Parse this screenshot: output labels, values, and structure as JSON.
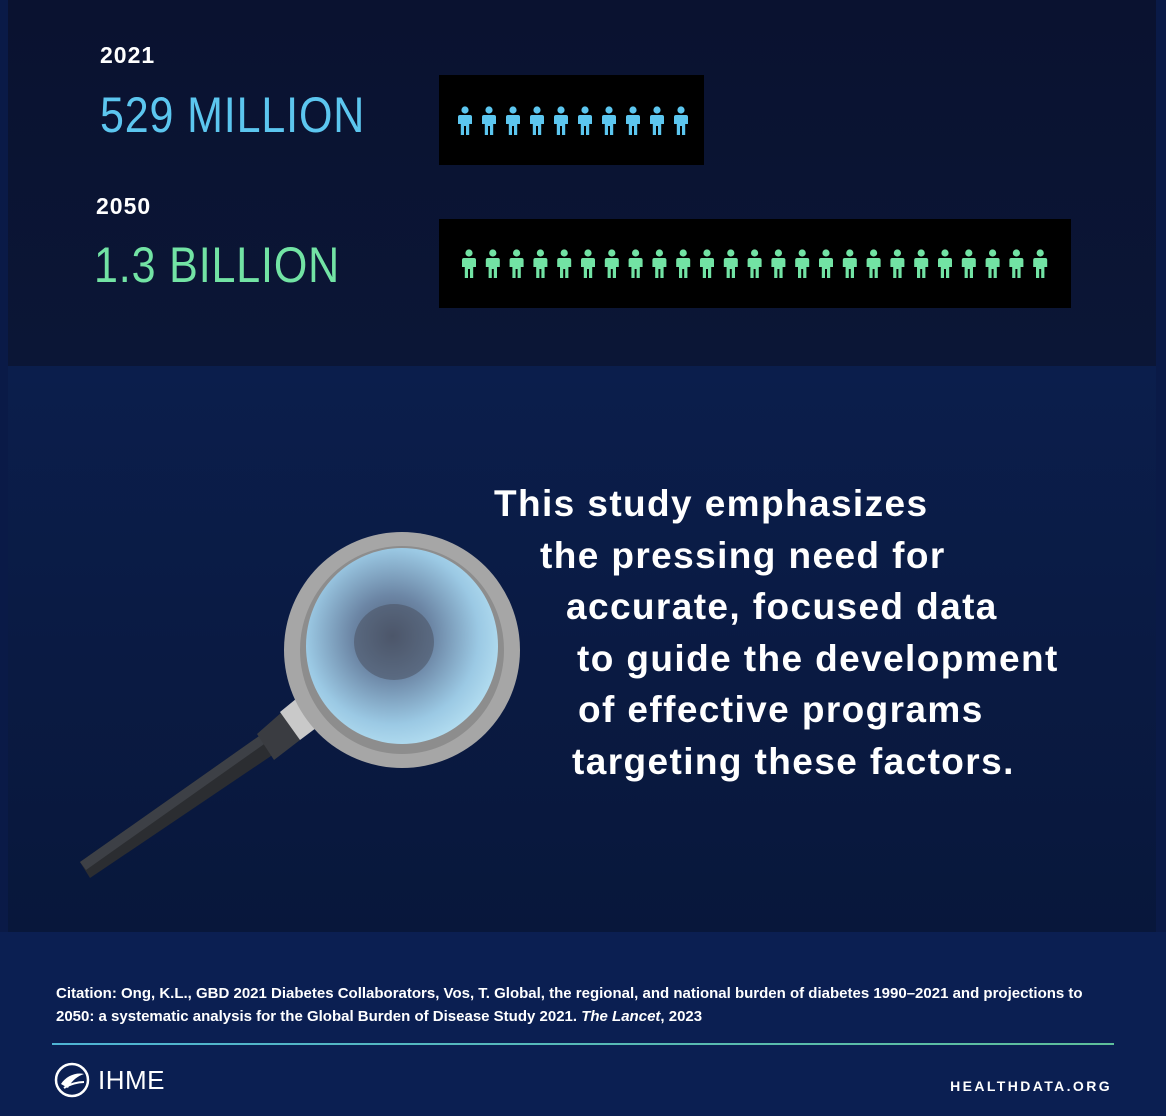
{
  "stats": [
    {
      "year": "2021",
      "value": "529 MILLION",
      "icon_count": 10,
      "color": "#5cc6ef"
    },
    {
      "year": "2050",
      "value": "1.3 BILLION",
      "icon_count": 25,
      "color": "#72e3a4"
    }
  ],
  "quote": {
    "lines": [
      "This study emphasizes",
      "the pressing need for",
      "accurate, focused data",
      "to guide the development",
      "of effective programs",
      "targeting these factors."
    ]
  },
  "citation": {
    "text": "Citation: Ong, K.L., GBD 2021 Diabetes Collaborators, Vos, T. Global, the regional, and national burden of diabetes 1990–2021 and projections to 2050: a systematic analysis for the Global Burden of Disease Study 2021. ",
    "journal": "The Lancet",
    "year": ", 2023"
  },
  "footer": {
    "logo_text": "IHME",
    "logo_icon": "ihme-logo-icon",
    "site": "HEALTHDATA.ORG"
  },
  "icons": {
    "person": "person-icon",
    "magnifier": "magnifying-glass-icon"
  }
}
